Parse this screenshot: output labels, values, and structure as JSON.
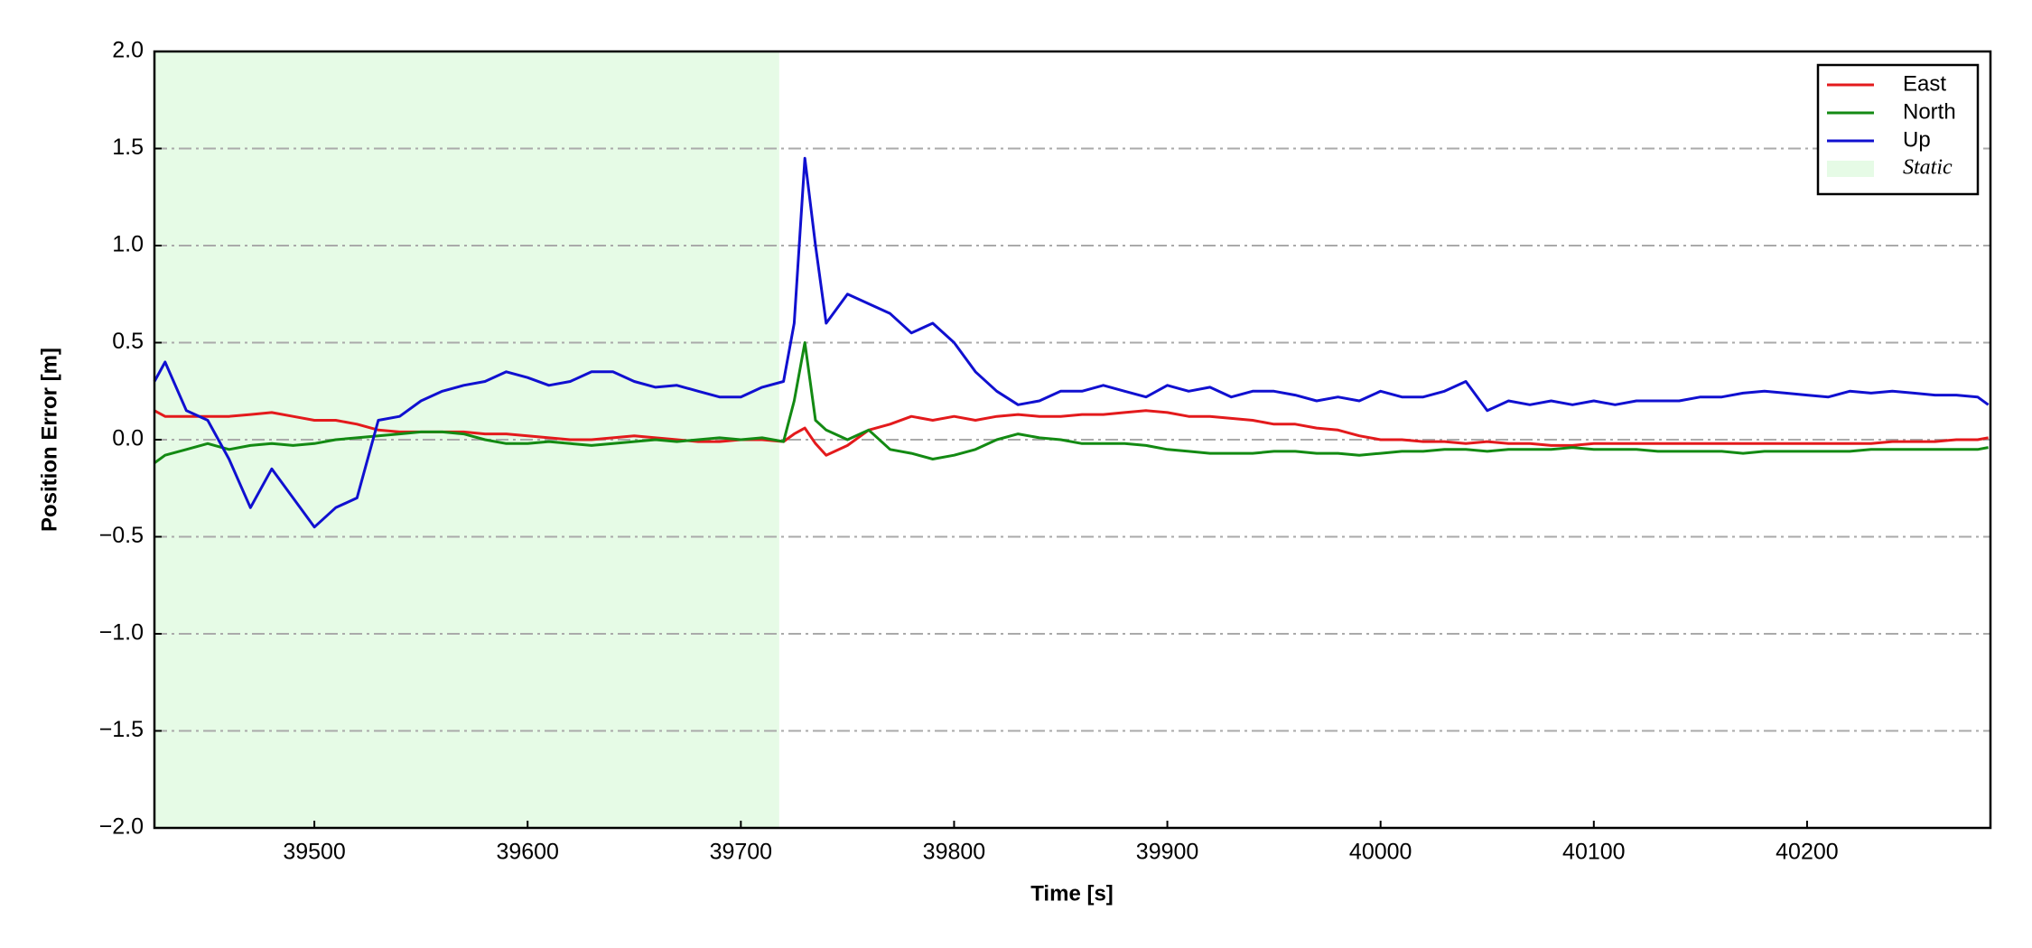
{
  "chart_data": {
    "type": "line",
    "xlabel": "Time [s]",
    "ylabel": "Position Error [m]",
    "x": [
      39425,
      39430,
      39440,
      39450,
      39460,
      39470,
      39480,
      39490,
      39500,
      39510,
      39520,
      39530,
      39540,
      39550,
      39560,
      39570,
      39580,
      39590,
      39600,
      39610,
      39620,
      39630,
      39640,
      39650,
      39660,
      39670,
      39680,
      39690,
      39700,
      39710,
      39720,
      39725,
      39730,
      39735,
      39740,
      39750,
      39760,
      39770,
      39780,
      39790,
      39800,
      39810,
      39820,
      39830,
      39840,
      39850,
      39860,
      39870,
      39880,
      39890,
      39900,
      39910,
      39920,
      39930,
      39940,
      39950,
      39960,
      39970,
      39980,
      39990,
      40000,
      40010,
      40020,
      40030,
      40040,
      40050,
      40060,
      40070,
      40080,
      40090,
      40100,
      40110,
      40120,
      40130,
      40140,
      40150,
      40160,
      40170,
      40180,
      40190,
      40200,
      40210,
      40220,
      40230,
      40240,
      40250,
      40260,
      40270,
      40280,
      40285
    ],
    "series": [
      {
        "name": "East",
        "color": "#e31a1c",
        "values": [
          0.15,
          0.12,
          0.12,
          0.12,
          0.12,
          0.13,
          0.14,
          0.12,
          0.1,
          0.1,
          0.08,
          0.05,
          0.04,
          0.04,
          0.04,
          0.04,
          0.03,
          0.03,
          0.02,
          0.01,
          0.0,
          0.0,
          0.01,
          0.02,
          0.01,
          0.0,
          -0.01,
          -0.01,
          0.0,
          0.0,
          -0.01,
          0.03,
          0.06,
          -0.02,
          -0.08,
          -0.03,
          0.05,
          0.08,
          0.12,
          0.1,
          0.12,
          0.1,
          0.12,
          0.13,
          0.12,
          0.12,
          0.13,
          0.13,
          0.14,
          0.15,
          0.14,
          0.12,
          0.12,
          0.11,
          0.1,
          0.08,
          0.08,
          0.06,
          0.05,
          0.02,
          0.0,
          0.0,
          -0.01,
          -0.01,
          -0.02,
          -0.01,
          -0.02,
          -0.02,
          -0.03,
          -0.03,
          -0.02,
          -0.02,
          -0.02,
          -0.02,
          -0.02,
          -0.02,
          -0.02,
          -0.02,
          -0.02,
          -0.02,
          -0.02,
          -0.02,
          -0.02,
          -0.02,
          -0.01,
          -0.01,
          -0.01,
          0.0,
          0.0,
          0.01
        ]
      },
      {
        "name": "North",
        "color": "#138a13",
        "values": [
          -0.12,
          -0.08,
          -0.05,
          -0.02,
          -0.05,
          -0.03,
          -0.02,
          -0.03,
          -0.02,
          0.0,
          0.01,
          0.02,
          0.03,
          0.04,
          0.04,
          0.03,
          0.0,
          -0.02,
          -0.02,
          -0.01,
          -0.02,
          -0.03,
          -0.02,
          -0.01,
          0.0,
          -0.01,
          0.0,
          0.01,
          0.0,
          0.01,
          -0.01,
          0.2,
          0.5,
          0.1,
          0.05,
          0.0,
          0.05,
          -0.05,
          -0.07,
          -0.1,
          -0.08,
          -0.05,
          0.0,
          0.03,
          0.01,
          0.0,
          -0.02,
          -0.02,
          -0.02,
          -0.03,
          -0.05,
          -0.06,
          -0.07,
          -0.07,
          -0.07,
          -0.06,
          -0.06,
          -0.07,
          -0.07,
          -0.08,
          -0.07,
          -0.06,
          -0.06,
          -0.05,
          -0.05,
          -0.06,
          -0.05,
          -0.05,
          -0.05,
          -0.04,
          -0.05,
          -0.05,
          -0.05,
          -0.06,
          -0.06,
          -0.06,
          -0.06,
          -0.07,
          -0.06,
          -0.06,
          -0.06,
          -0.06,
          -0.06,
          -0.05,
          -0.05,
          -0.05,
          -0.05,
          -0.05,
          -0.05,
          -0.04
        ]
      },
      {
        "name": "Up",
        "color": "#1010d0",
        "values": [
          0.3,
          0.4,
          0.15,
          0.1,
          -0.1,
          -0.35,
          -0.15,
          -0.3,
          -0.45,
          -0.35,
          -0.3,
          0.1,
          0.12,
          0.2,
          0.25,
          0.28,
          0.3,
          0.35,
          0.32,
          0.28,
          0.3,
          0.35,
          0.35,
          0.3,
          0.27,
          0.28,
          0.25,
          0.22,
          0.22,
          0.27,
          0.3,
          0.6,
          1.45,
          1.0,
          0.6,
          0.75,
          0.7,
          0.65,
          0.55,
          0.6,
          0.5,
          0.35,
          0.25,
          0.18,
          0.2,
          0.25,
          0.25,
          0.28,
          0.25,
          0.22,
          0.28,
          0.25,
          0.27,
          0.22,
          0.25,
          0.25,
          0.23,
          0.2,
          0.22,
          0.2,
          0.25,
          0.22,
          0.22,
          0.25,
          0.3,
          0.15,
          0.2,
          0.18,
          0.2,
          0.18,
          0.2,
          0.18,
          0.2,
          0.2,
          0.2,
          0.22,
          0.22,
          0.24,
          0.25,
          0.24,
          0.23,
          0.22,
          0.25,
          0.24,
          0.25,
          0.24,
          0.23,
          0.23,
          0.22,
          0.18
        ]
      }
    ],
    "spans": [
      {
        "name": "Static",
        "color": "#e6fbe6",
        "xlim": [
          39425,
          39718
        ]
      }
    ],
    "xlim": [
      39425,
      40286
    ],
    "xticks": [
      39500,
      39600,
      39700,
      39800,
      39900,
      40000,
      40100,
      40200
    ],
    "ylim": [
      -2,
      2
    ],
    "yticks": [
      {
        "value": -2,
        "label": "−2.0"
      },
      {
        "value": -1.5,
        "label": "−1.5"
      },
      {
        "value": -1,
        "label": "−1.0"
      },
      {
        "value": -0.5,
        "label": "−0.5"
      },
      {
        "value": 0,
        "label": "0.0"
      },
      {
        "value": 0.5,
        "label": "0.5"
      },
      {
        "value": 1,
        "label": "1.0"
      },
      {
        "value": 1.5,
        "label": "1.5"
      },
      {
        "value": 2,
        "label": "2.0"
      }
    ],
    "grid": true,
    "legend": "upper right"
  }
}
